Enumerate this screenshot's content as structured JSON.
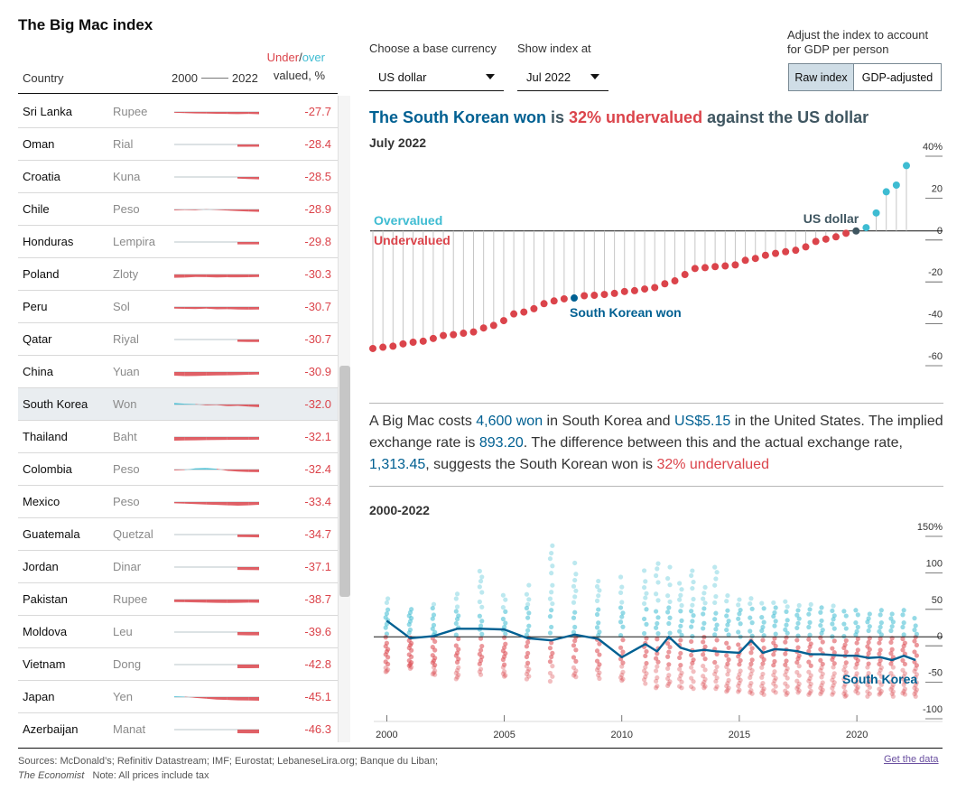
{
  "app": {
    "title": "The Big Mac index"
  },
  "table": {
    "header": {
      "country": "Country",
      "year_start": "2000",
      "year_end": "2022",
      "under": "Under",
      "slash": "/",
      "over": "over",
      "valued": "valued, %"
    },
    "rows": [
      {
        "country": "Sri Lanka",
        "currency": "Rupee",
        "value": "-27.7",
        "spark": [
          -10,
          -14,
          -18,
          -20,
          -22,
          -24,
          -26,
          -24,
          -27.7
        ]
      },
      {
        "country": "Oman",
        "currency": "Rial",
        "value": "-28.4",
        "spark": [
          -28,
          -28,
          -28.4
        ]
      },
      {
        "country": "Croatia",
        "currency": "Kuna",
        "value": "-28.5",
        "spark": [
          -20,
          -25,
          -28.5
        ]
      },
      {
        "country": "Chile",
        "currency": "Peso",
        "value": "-28.9",
        "spark": [
          -10,
          -5,
          -8,
          3,
          -6,
          -12,
          -20,
          -25,
          -28.9
        ]
      },
      {
        "country": "Honduras",
        "currency": "Lempira",
        "value": "-29.8",
        "spark": [
          -29,
          -29.5,
          -29.8
        ]
      },
      {
        "country": "Poland",
        "currency": "Zloty",
        "value": "-30.3",
        "spark": [
          -40,
          -38,
          -30,
          -32,
          -36,
          -34,
          -35,
          -33,
          -30.3
        ]
      },
      {
        "country": "Peru",
        "currency": "Sol",
        "value": "-30.7",
        "spark": [
          -20,
          -22,
          -25,
          -20,
          -28,
          -26,
          -30,
          -32,
          -30.7
        ]
      },
      {
        "country": "Qatar",
        "currency": "Riyal",
        "value": "-30.7",
        "spark": [
          -28,
          -30,
          -30.7
        ]
      },
      {
        "country": "China",
        "currency": "Yuan",
        "value": "-30.9",
        "spark": [
          -45,
          -50,
          -48,
          -44,
          -42,
          -40,
          -38,
          -34,
          -30.9
        ]
      },
      {
        "country": "South Korea",
        "currency": "Won",
        "value": "-32.0",
        "spark": [
          20,
          10,
          5,
          -10,
          -5,
          -20,
          -15,
          -25,
          -32
        ]
      },
      {
        "country": "Thailand",
        "currency": "Baht",
        "value": "-32.1",
        "spark": [
          -45,
          -42,
          -40,
          -38,
          -36,
          -35,
          -34,
          -33,
          -32.1
        ]
      },
      {
        "country": "Colombia",
        "currency": "Peso",
        "value": "-32.4",
        "spark": [
          -10,
          -5,
          15,
          20,
          10,
          -15,
          -25,
          -30,
          -32.4
        ]
      },
      {
        "country": "Mexico",
        "currency": "Peso",
        "value": "-33.4",
        "spark": [
          -15,
          -20,
          -25,
          -30,
          -35,
          -40,
          -45,
          -40,
          -33.4
        ]
      },
      {
        "country": "Guatemala",
        "currency": "Quetzal",
        "value": "-34.7",
        "spark": [
          -30,
          -32,
          -34.7
        ]
      },
      {
        "country": "Jordan",
        "currency": "Dinar",
        "value": "-37.1",
        "spark": [
          -35,
          -36,
          -37.1
        ]
      },
      {
        "country": "Pakistan",
        "currency": "Rupee",
        "value": "-38.7",
        "spark": [
          -30,
          -32,
          -35,
          -38,
          -40,
          -42,
          -40,
          -38,
          -38.7
        ]
      },
      {
        "country": "Moldova",
        "currency": "Leu",
        "value": "-39.6",
        "spark": [
          -38,
          -40,
          -39.6
        ]
      },
      {
        "country": "Vietnam",
        "currency": "Dong",
        "value": "-42.8",
        "spark": [
          -45,
          -44,
          -42.8
        ]
      },
      {
        "country": "Japan",
        "currency": "Yen",
        "value": "-45.1",
        "spark": [
          10,
          5,
          -10,
          -20,
          -30,
          -35,
          -40,
          -42,
          -45.1
        ]
      },
      {
        "country": "Azerbaijan",
        "currency": "Manat",
        "value": "-46.3",
        "spark": [
          -45,
          -46,
          -46.3
        ]
      }
    ]
  },
  "controls": {
    "base_currency_label": "Choose a base currency",
    "base_currency_value": "US dollar",
    "show_at_label": "Show index at",
    "show_at_value": "Jul 2022",
    "gdp_label_line1": "Adjust the index to account",
    "gdp_label_line2": "for GDP per person",
    "raw_label": "Raw index",
    "gdp_adjusted_label": "GDP-adjusted"
  },
  "headline": {
    "currency": "The South Korean won",
    "middle": " is ",
    "undervalued": "32% undervalued",
    "end": " against the US dollar"
  },
  "subhead": "July 2022",
  "explainer": {
    "p1": "A Big Mac costs ",
    "local_price": "4,600 won",
    "p2": " in South Korea and ",
    "us_price": "US$5.15",
    "p3": " in the United States. The implied exchange rate is ",
    "implied_rate": "893.20",
    "p4": ". The difference between this and the actual exchange rate, ",
    "actual_rate": "1,313.45",
    "p5": ", suggests the South Korean won is ",
    "result": "32% undervalued"
  },
  "colors": {
    "under": "#db444b",
    "over": "#3ebcd2",
    "highlight": "#006092",
    "base": "#3f5661",
    "grid": "#c9c9c9"
  },
  "chart_data": [
    {
      "type": "scatter",
      "title": "July 2022",
      "ylabel": "%",
      "ylim": [
        -60,
        40
      ],
      "yticks": [
        "40%",
        "20",
        "0",
        "-20",
        "-40",
        "-60"
      ],
      "ytick_values": [
        40,
        20,
        0,
        -20,
        -40,
        -60
      ],
      "legend": {
        "over": "Overvalued",
        "under": "Undervalued"
      },
      "annotations": {
        "base": "US dollar",
        "highlight": "South Korean won"
      },
      "highlight_index": 20,
      "base_index": 48,
      "values": [
        -56.1,
        -55.5,
        -55.0,
        -53.9,
        -53.1,
        -52.6,
        -51.3,
        -49.9,
        -49.5,
        -48.8,
        -48.2,
        -46.3,
        -45.1,
        -42.8,
        -39.6,
        -38.7,
        -37.1,
        -34.7,
        -33.4,
        -32.4,
        -32.0,
        -30.9,
        -30.7,
        -30.3,
        -29.8,
        -28.9,
        -28.5,
        -27.7,
        -27.0,
        -25.2,
        -23.8,
        -20.8,
        -17.9,
        -17.5,
        -17.0,
        -16.7,
        -16.2,
        -14.0,
        -13.1,
        -11.6,
        -10.7,
        -9.9,
        -9.2,
        -7.6,
        -5.0,
        -3.9,
        -2.8,
        -1.1,
        0.0,
        1.6,
        8.6,
        18.7,
        21.9,
        31.2
      ]
    },
    {
      "type": "scatter",
      "title": "2000-2022",
      "ylim": [
        -100,
        150
      ],
      "yticks": [
        "150%",
        "100",
        "50",
        "0",
        "-50",
        "-100"
      ],
      "ytick_values": [
        150,
        100,
        50,
        0,
        -50,
        -100
      ],
      "x_ticks": [
        2000,
        2005,
        2010,
        2015,
        2020
      ],
      "xlim": [
        1999.6,
        2022.8
      ],
      "highlight_series": {
        "name": "South Korea",
        "x": [
          2000,
          2001,
          2002,
          2003,
          2004,
          2005,
          2006,
          2007,
          2008,
          2009,
          2010,
          2011,
          2011.5,
          2012,
          2012.5,
          2013,
          2013.5,
          2014,
          2014.5,
          2015,
          2015.5,
          2016,
          2016.5,
          2017,
          2017.5,
          2018,
          2018.5,
          2019,
          2019.5,
          2020,
          2020.5,
          2021,
          2021.5,
          2022,
          2022.5
        ],
        "values": [
          22,
          -2,
          1,
          11,
          11,
          10,
          -2,
          -5,
          3,
          -3,
          -28,
          -10,
          -20,
          0,
          -15,
          -20,
          -18,
          -20,
          -21,
          -22,
          -5,
          -22,
          -17,
          -18,
          -20,
          -24,
          -24,
          -25,
          -26,
          -26,
          -29,
          -28,
          -32,
          -26,
          -32
        ]
      },
      "cloud_dates": [
        2000,
        2001,
        2002,
        2003,
        2004,
        2005,
        2006,
        2007,
        2008,
        2009,
        2010,
        2011,
        2011.5,
        2012,
        2012.5,
        2013,
        2013.5,
        2014,
        2014.5,
        2015,
        2015.5,
        2016,
        2016.5,
        2017,
        2017.5,
        2018,
        2018.5,
        2019,
        2019.5,
        2020,
        2020.5,
        2021,
        2021.5,
        2022,
        2022.5
      ],
      "cloud_spread": [
        [
          -48,
          58
        ],
        [
          -45,
          40
        ],
        [
          -52,
          50
        ],
        [
          -60,
          62
        ],
        [
          -52,
          98
        ],
        [
          -55,
          60
        ],
        [
          -58,
          78
        ],
        [
          -62,
          130
        ],
        [
          -55,
          110
        ],
        [
          -58,
          80
        ],
        [
          -60,
          90
        ],
        [
          -65,
          95
        ],
        [
          -70,
          110
        ],
        [
          -68,
          100
        ],
        [
          -70,
          88
        ],
        [
          -72,
          95
        ],
        [
          -70,
          82
        ],
        [
          -72,
          100
        ],
        [
          -75,
          70
        ],
        [
          -76,
          60
        ],
        [
          -78,
          58
        ],
        [
          -80,
          55
        ],
        [
          -78,
          52
        ],
        [
          -80,
          50
        ],
        [
          -78,
          48
        ],
        [
          -80,
          46
        ],
        [
          -80,
          45
        ],
        [
          -82,
          44
        ],
        [
          -82,
          40
        ],
        [
          -80,
          38
        ],
        [
          -82,
          36
        ],
        [
          -80,
          38
        ],
        [
          -82,
          36
        ],
        [
          -80,
          38
        ],
        [
          -82,
          30
        ]
      ]
    }
  ],
  "lower": {
    "title": "2000-2022",
    "label": "South Korea"
  },
  "footer": {
    "sources_prefix": "Sources: McDonald’s; Refinitiv Datastream; IMF; Eurostat; LebaneseLira.org; Banque du Liban; ",
    "sources_italic": "The Economist",
    "note": "   Note: All prices include tax",
    "get_data": "Get the data"
  }
}
